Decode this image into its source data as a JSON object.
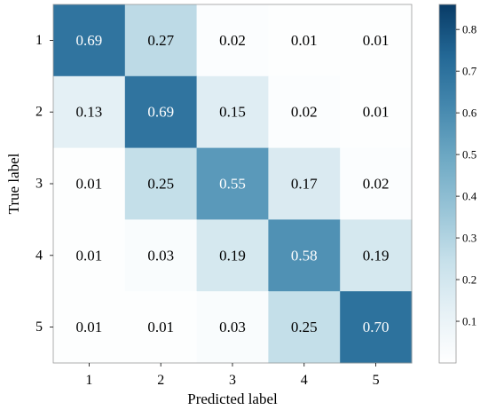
{
  "chart_data": {
    "type": "heatmap",
    "title": "",
    "xlabel": "Predicted label",
    "ylabel": "True label",
    "x_categories": [
      "1",
      "2",
      "3",
      "4",
      "5"
    ],
    "y_categories": [
      "1",
      "2",
      "3",
      "4",
      "5"
    ],
    "values": [
      [
        0.69,
        0.27,
        0.02,
        0.01,
        0.01
      ],
      [
        0.13,
        0.69,
        0.15,
        0.02,
        0.01
      ],
      [
        0.01,
        0.25,
        0.55,
        0.17,
        0.02
      ],
      [
        0.01,
        0.03,
        0.19,
        0.58,
        0.19
      ],
      [
        0.01,
        0.01,
        0.03,
        0.25,
        0.7
      ]
    ],
    "cell_labels": [
      [
        "0.69",
        "0.27",
        "0.02",
        "0.01",
        "0.01"
      ],
      [
        "0.13",
        "0.69",
        "0.15",
        "0.02",
        "0.01"
      ],
      [
        "0.01",
        "0.25",
        "0.55",
        "0.17",
        "0.02"
      ],
      [
        "0.01",
        "0.03",
        "0.19",
        "0.58",
        "0.19"
      ],
      [
        "0.01",
        "0.01",
        "0.03",
        "0.25",
        "0.70"
      ]
    ],
    "colorbar": {
      "range": [
        0.0,
        0.86
      ],
      "ticks": [
        0.1,
        0.2,
        0.3,
        0.4,
        0.5,
        0.6,
        0.7,
        0.8
      ],
      "tick_labels": [
        "0.1",
        "0.2",
        "0.3",
        "0.4",
        "0.5",
        "0.6",
        "0.7",
        "0.8"
      ],
      "colormap": [
        "#ffffff",
        "#e6f1f6",
        "#c6e0ea",
        "#98c4d7",
        "#6ea9c4",
        "#4588ae",
        "#236896",
        "#083b66"
      ]
    },
    "grid": false
  }
}
